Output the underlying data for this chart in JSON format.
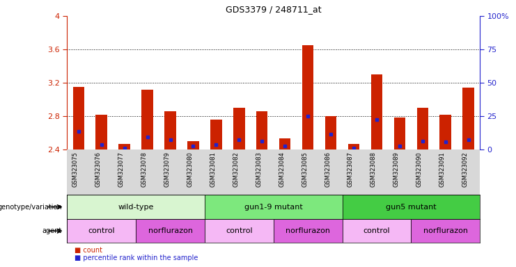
{
  "title": "GDS3379 / 248711_at",
  "samples": [
    "GSM323075",
    "GSM323076",
    "GSM323077",
    "GSM323078",
    "GSM323079",
    "GSM323080",
    "GSM323081",
    "GSM323082",
    "GSM323083",
    "GSM323084",
    "GSM323085",
    "GSM323086",
    "GSM323087",
    "GSM323088",
    "GSM323089",
    "GSM323090",
    "GSM323091",
    "GSM323092"
  ],
  "bar_heights": [
    3.15,
    2.82,
    2.47,
    3.12,
    2.86,
    2.5,
    2.76,
    2.9,
    2.86,
    2.53,
    3.65,
    2.8,
    2.47,
    3.3,
    2.78,
    2.9,
    2.82,
    3.14
  ],
  "blue_positions": [
    2.62,
    2.46,
    2.42,
    2.55,
    2.52,
    2.44,
    2.46,
    2.52,
    2.5,
    2.44,
    2.8,
    2.58,
    2.42,
    2.76,
    2.44,
    2.5,
    2.49,
    2.52
  ],
  "ymin": 2.4,
  "ymax": 4.0,
  "yticks": [
    2.4,
    2.8,
    3.2,
    3.6,
    4.0
  ],
  "ytick_labels": [
    "2.4",
    "2.8",
    "3.2",
    "3.6",
    "4"
  ],
  "right_yticks": [
    0,
    25,
    50,
    75,
    100
  ],
  "right_ytick_labels": [
    "0",
    "25",
    "50",
    "75",
    "100%"
  ],
  "bar_color": "#cc2200",
  "blue_color": "#2222cc",
  "bar_width": 0.5,
  "genotype_groups": [
    {
      "label": "wild-type",
      "start": 0,
      "end": 5,
      "color": "#d8f5d0"
    },
    {
      "label": "gun1-9 mutant",
      "start": 6,
      "end": 11,
      "color": "#7de87d"
    },
    {
      "label": "gun5 mutant",
      "start": 12,
      "end": 17,
      "color": "#44cc44"
    }
  ],
  "agent_groups": [
    {
      "label": "control",
      "start": 0,
      "end": 2,
      "color": "#f5b8f5"
    },
    {
      "label": "norflurazon",
      "start": 3,
      "end": 5,
      "color": "#dd66dd"
    },
    {
      "label": "control",
      "start": 6,
      "end": 8,
      "color": "#f5b8f5"
    },
    {
      "label": "norflurazon",
      "start": 9,
      "end": 11,
      "color": "#dd66dd"
    },
    {
      "label": "control",
      "start": 12,
      "end": 14,
      "color": "#f5b8f5"
    },
    {
      "label": "norflurazon",
      "start": 15,
      "end": 17,
      "color": "#dd66dd"
    }
  ],
  "legend_count_color": "#cc2200",
  "legend_pct_color": "#2222cc",
  "bg_color": "#ffffff",
  "tick_bg_color": "#d8d8d8"
}
